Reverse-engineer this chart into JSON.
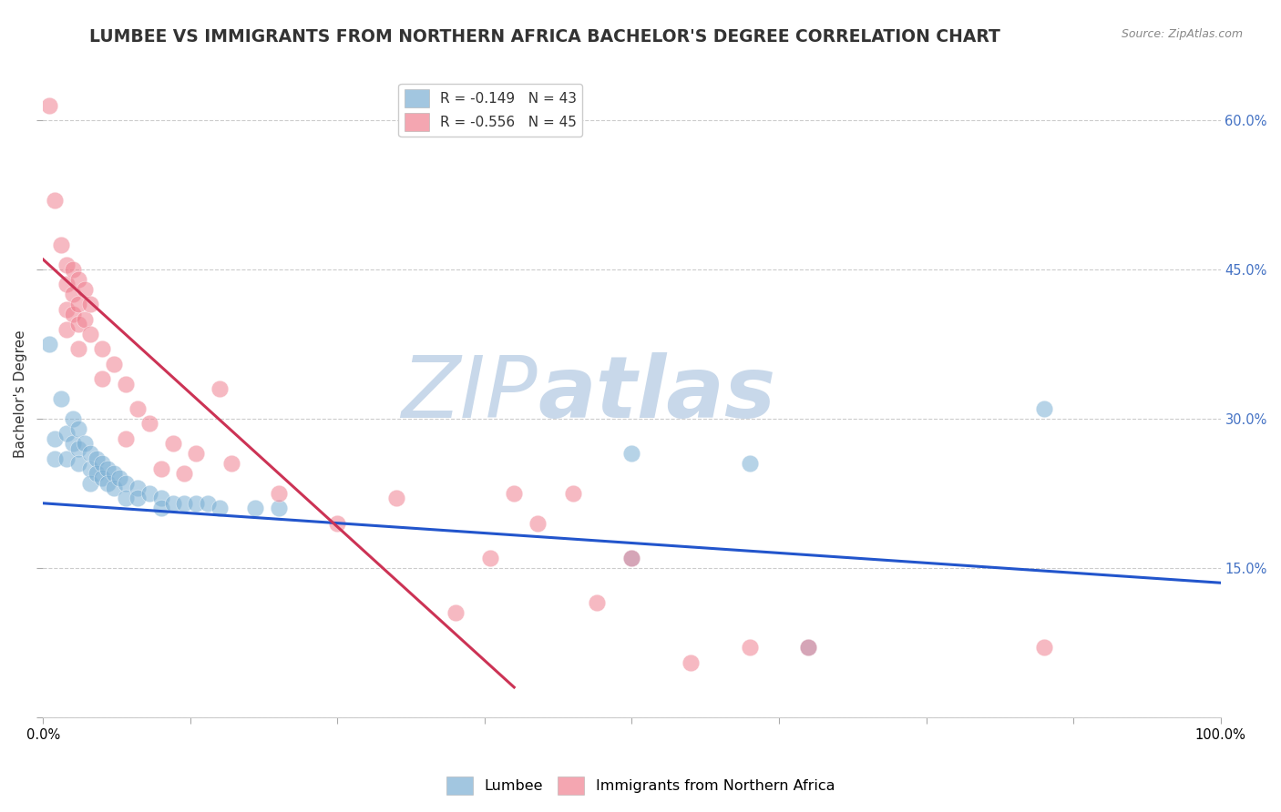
{
  "title": "LUMBEE VS IMMIGRANTS FROM NORTHERN AFRICA BACHELOR'S DEGREE CORRELATION CHART",
  "source_text": "Source: ZipAtlas.com",
  "ylabel": "Bachelor's Degree",
  "watermark_zip": "ZIP",
  "watermark_atlas": "atlas",
  "xlim": [
    0.0,
    1.0
  ],
  "ylim": [
    0.0,
    0.65
  ],
  "yticks": [
    0.0,
    0.15,
    0.3,
    0.45,
    0.6
  ],
  "ytick_labels_right": [
    "",
    "15.0%",
    "30.0%",
    "45.0%",
    "60.0%"
  ],
  "xticks": [
    0.0,
    0.125,
    0.25,
    0.375,
    0.5,
    0.625,
    0.75,
    0.875,
    1.0
  ],
  "xtick_labels": [
    "0.0%",
    "",
    "",
    "",
    "",
    "",
    "",
    "",
    "100.0%"
  ],
  "legend_label_1": "R = -0.149   N = 43",
  "legend_label_2": "R = -0.556   N = 45",
  "lumbee_legend": "Lumbee",
  "immigrant_legend": "Immigrants from Northern Africa",
  "lumbee_color": "#7bafd4",
  "immigrant_color": "#f08090",
  "lumbee_points": [
    [
      0.005,
      0.375
    ],
    [
      0.01,
      0.28
    ],
    [
      0.01,
      0.26
    ],
    [
      0.015,
      0.32
    ],
    [
      0.02,
      0.285
    ],
    [
      0.02,
      0.26
    ],
    [
      0.025,
      0.3
    ],
    [
      0.025,
      0.275
    ],
    [
      0.03,
      0.29
    ],
    [
      0.03,
      0.27
    ],
    [
      0.03,
      0.255
    ],
    [
      0.035,
      0.275
    ],
    [
      0.04,
      0.265
    ],
    [
      0.04,
      0.25
    ],
    [
      0.04,
      0.235
    ],
    [
      0.045,
      0.26
    ],
    [
      0.045,
      0.245
    ],
    [
      0.05,
      0.255
    ],
    [
      0.05,
      0.24
    ],
    [
      0.055,
      0.25
    ],
    [
      0.055,
      0.235
    ],
    [
      0.06,
      0.245
    ],
    [
      0.06,
      0.23
    ],
    [
      0.065,
      0.24
    ],
    [
      0.07,
      0.235
    ],
    [
      0.07,
      0.22
    ],
    [
      0.08,
      0.23
    ],
    [
      0.08,
      0.22
    ],
    [
      0.09,
      0.225
    ],
    [
      0.1,
      0.22
    ],
    [
      0.1,
      0.21
    ],
    [
      0.11,
      0.215
    ],
    [
      0.12,
      0.215
    ],
    [
      0.13,
      0.215
    ],
    [
      0.14,
      0.215
    ],
    [
      0.15,
      0.21
    ],
    [
      0.18,
      0.21
    ],
    [
      0.2,
      0.21
    ],
    [
      0.5,
      0.265
    ],
    [
      0.5,
      0.16
    ],
    [
      0.6,
      0.255
    ],
    [
      0.65,
      0.07
    ],
    [
      0.85,
      0.31
    ]
  ],
  "immigrant_points": [
    [
      0.005,
      0.615
    ],
    [
      0.01,
      0.52
    ],
    [
      0.015,
      0.475
    ],
    [
      0.02,
      0.455
    ],
    [
      0.02,
      0.435
    ],
    [
      0.02,
      0.41
    ],
    [
      0.02,
      0.39
    ],
    [
      0.025,
      0.45
    ],
    [
      0.025,
      0.425
    ],
    [
      0.025,
      0.405
    ],
    [
      0.03,
      0.44
    ],
    [
      0.03,
      0.415
    ],
    [
      0.03,
      0.395
    ],
    [
      0.03,
      0.37
    ],
    [
      0.035,
      0.43
    ],
    [
      0.035,
      0.4
    ],
    [
      0.04,
      0.415
    ],
    [
      0.04,
      0.385
    ],
    [
      0.05,
      0.37
    ],
    [
      0.05,
      0.34
    ],
    [
      0.06,
      0.355
    ],
    [
      0.07,
      0.335
    ],
    [
      0.07,
      0.28
    ],
    [
      0.08,
      0.31
    ],
    [
      0.09,
      0.295
    ],
    [
      0.1,
      0.25
    ],
    [
      0.11,
      0.275
    ],
    [
      0.12,
      0.245
    ],
    [
      0.13,
      0.265
    ],
    [
      0.15,
      0.33
    ],
    [
      0.16,
      0.255
    ],
    [
      0.2,
      0.225
    ],
    [
      0.25,
      0.195
    ],
    [
      0.3,
      0.22
    ],
    [
      0.35,
      0.105
    ],
    [
      0.38,
      0.16
    ],
    [
      0.4,
      0.225
    ],
    [
      0.42,
      0.195
    ],
    [
      0.45,
      0.225
    ],
    [
      0.47,
      0.115
    ],
    [
      0.5,
      0.16
    ],
    [
      0.55,
      0.055
    ],
    [
      0.6,
      0.07
    ],
    [
      0.65,
      0.07
    ],
    [
      0.85,
      0.07
    ]
  ],
  "lumbee_line": {
    "x0": 0.0,
    "y0": 0.215,
    "x1": 1.0,
    "y1": 0.135
  },
  "immigrant_line": {
    "x0": 0.0,
    "y0": 0.46,
    "x1": 0.4,
    "y1": 0.03
  },
  "background_color": "#ffffff",
  "grid_color": "#cccccc",
  "title_color": "#333333",
  "title_fontsize": 13.5,
  "axis_label_fontsize": 11,
  "tick_fontsize": 10.5,
  "right_tick_color": "#4472c4",
  "watermark_color": "#c8d8ea",
  "watermark_fontsize": 68
}
